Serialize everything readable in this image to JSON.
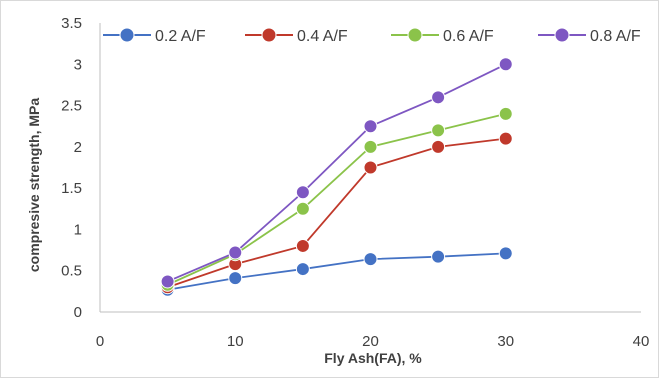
{
  "chart_data": {
    "type": "line",
    "title": "",
    "xlabel": "Fly Ash(FA), %",
    "ylabel": "compresive strength, MPa",
    "xlim": [
      0,
      40
    ],
    "ylim": [
      0,
      3.5
    ],
    "xticks": [
      0,
      10,
      20,
      30,
      40
    ],
    "yticks": [
      0,
      0.5,
      1,
      1.5,
      2,
      2.5,
      3,
      3.5
    ],
    "ytick_labels": [
      "0",
      "0.5",
      "1",
      "1.5",
      "2",
      "2.5",
      "3",
      "3.5"
    ],
    "grid": false,
    "legend_position": "top",
    "x": [
      5,
      10,
      15,
      20,
      25,
      30
    ],
    "series": [
      {
        "name": "0.2 A/F",
        "color": "#4472c4",
        "values": [
          0.27,
          0.41,
          0.52,
          0.64,
          0.67,
          0.71
        ]
      },
      {
        "name": "0.4 A/F",
        "color": "#c0392b",
        "values": [
          0.3,
          0.58,
          0.8,
          1.75,
          2.0,
          2.1
        ]
      },
      {
        "name": "0.6 A/F",
        "color": "#8bc34a",
        "values": [
          0.33,
          0.7,
          1.25,
          2.0,
          2.2,
          2.4
        ]
      },
      {
        "name": "0.8 A/F",
        "color": "#7e57c2",
        "values": [
          0.37,
          0.72,
          1.45,
          2.25,
          2.6,
          3.0
        ]
      }
    ]
  }
}
